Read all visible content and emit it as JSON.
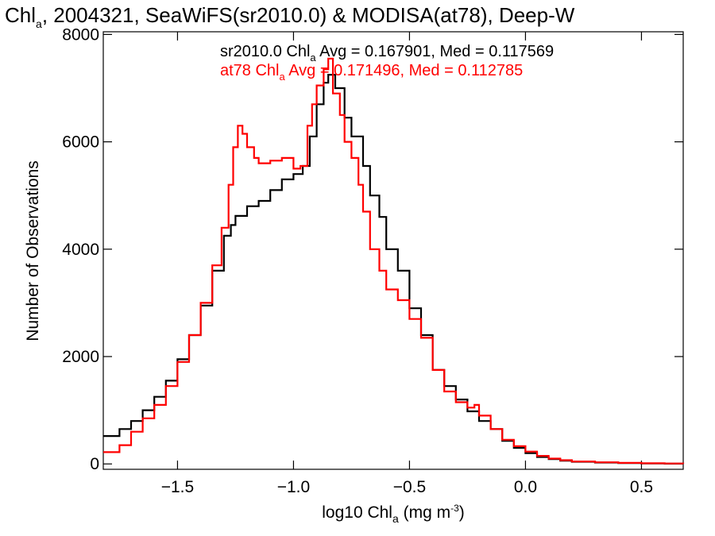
{
  "chart_data": {
    "type": "line",
    "title": {
      "prefix": "Chl",
      "sub": "a",
      "rest": ", 2004321, SeaWiFS(sr2010.0) & MODISA(at78), Deep-W"
    },
    "xlabel": {
      "prefix": "log10 Chl",
      "sub": "a",
      "unit_open": " (mg m",
      "unit_sup": "-3",
      "unit_close": ")"
    },
    "ylabel": "Number of Observations",
    "xlim": [
      -1.82,
      0.68
    ],
    "ylim": [
      -100,
      8050
    ],
    "x_ticks": [
      -1.5,
      -1.0,
      -0.5,
      0.0,
      0.5
    ],
    "x_tick_labels": [
      "−1.5",
      "−1.0",
      "−0.5",
      "0.0",
      "0.5"
    ],
    "y_ticks": [
      0,
      2000,
      4000,
      6000,
      8000
    ],
    "y_tick_labels": [
      "0",
      "2000",
      "4000",
      "6000",
      "8000"
    ],
    "annotations": [
      {
        "color": "#000000",
        "pre": "sr2010.0 Chl",
        "sub": "a",
        "post": " Avg = 0.167901, Med = 0.117569"
      },
      {
        "color": "#ff0000",
        "pre": "at78 Chl",
        "sub": "a",
        "post": " Avg = 0.171496, Med = 0.112785"
      }
    ],
    "series": [
      {
        "color": "#000000",
        "step": "histogram",
        "points": [
          [
            -1.82,
            520
          ],
          [
            -1.75,
            650
          ],
          [
            -1.7,
            800
          ],
          [
            -1.65,
            1000
          ],
          [
            -1.6,
            1250
          ],
          [
            -1.55,
            1550
          ],
          [
            -1.5,
            1950
          ],
          [
            -1.45,
            2400
          ],
          [
            -1.4,
            2950
          ],
          [
            -1.35,
            3600
          ],
          [
            -1.3,
            4250
          ],
          [
            -1.27,
            4450
          ],
          [
            -1.25,
            4620
          ],
          [
            -1.2,
            4800
          ],
          [
            -1.15,
            4900
          ],
          [
            -1.1,
            5100
          ],
          [
            -1.05,
            5300
          ],
          [
            -1.0,
            5400
          ],
          [
            -0.96,
            5550
          ],
          [
            -0.93,
            6100
          ],
          [
            -0.9,
            6700
          ],
          [
            -0.87,
            7100
          ],
          [
            -0.85,
            7250
          ],
          [
            -0.82,
            7000
          ],
          [
            -0.78,
            6450
          ],
          [
            -0.75,
            6100
          ],
          [
            -0.7,
            5550
          ],
          [
            -0.67,
            5000
          ],
          [
            -0.63,
            4600
          ],
          [
            -0.6,
            4000
          ],
          [
            -0.55,
            3600
          ],
          [
            -0.5,
            2900
          ],
          [
            -0.45,
            2400
          ],
          [
            -0.4,
            1750
          ],
          [
            -0.35,
            1450
          ],
          [
            -0.3,
            1200
          ],
          [
            -0.25,
            980
          ],
          [
            -0.2,
            800
          ],
          [
            -0.15,
            650
          ],
          [
            -0.1,
            430
          ],
          [
            -0.05,
            300
          ],
          [
            0.0,
            200
          ],
          [
            0.05,
            130
          ],
          [
            0.1,
            90
          ],
          [
            0.15,
            60
          ],
          [
            0.2,
            40
          ],
          [
            0.3,
            25
          ],
          [
            0.4,
            15
          ],
          [
            0.5,
            10
          ],
          [
            0.6,
            5
          ],
          [
            0.68,
            5
          ]
        ]
      },
      {
        "color": "#ff0000",
        "step": "histogram",
        "points": [
          [
            -1.82,
            220
          ],
          [
            -1.75,
            350
          ],
          [
            -1.7,
            600
          ],
          [
            -1.65,
            850
          ],
          [
            -1.6,
            1100
          ],
          [
            -1.55,
            1450
          ],
          [
            -1.5,
            1900
          ],
          [
            -1.45,
            2400
          ],
          [
            -1.4,
            3000
          ],
          [
            -1.35,
            3700
          ],
          [
            -1.31,
            4400
          ],
          [
            -1.28,
            5200
          ],
          [
            -1.26,
            5900
          ],
          [
            -1.24,
            6300
          ],
          [
            -1.22,
            6150
          ],
          [
            -1.2,
            5900
          ],
          [
            -1.17,
            5700
          ],
          [
            -1.15,
            5600
          ],
          [
            -1.1,
            5650
          ],
          [
            -1.05,
            5700
          ],
          [
            -1.0,
            5500
          ],
          [
            -0.97,
            5550
          ],
          [
            -0.94,
            6300
          ],
          [
            -0.92,
            6700
          ],
          [
            -0.9,
            7050
          ],
          [
            -0.87,
            7350
          ],
          [
            -0.85,
            7550
          ],
          [
            -0.83,
            6900
          ],
          [
            -0.8,
            6500
          ],
          [
            -0.78,
            6000
          ],
          [
            -0.75,
            5700
          ],
          [
            -0.72,
            5200
          ],
          [
            -0.7,
            4700
          ],
          [
            -0.67,
            4000
          ],
          [
            -0.63,
            3600
          ],
          [
            -0.6,
            3250
          ],
          [
            -0.55,
            3050
          ],
          [
            -0.5,
            2700
          ],
          [
            -0.45,
            2350
          ],
          [
            -0.4,
            1750
          ],
          [
            -0.35,
            1350
          ],
          [
            -0.3,
            1150
          ],
          [
            -0.25,
            1050
          ],
          [
            -0.22,
            1100
          ],
          [
            -0.2,
            900
          ],
          [
            -0.15,
            650
          ],
          [
            -0.1,
            450
          ],
          [
            -0.05,
            330
          ],
          [
            0.0,
            230
          ],
          [
            0.05,
            150
          ],
          [
            0.1,
            100
          ],
          [
            0.15,
            70
          ],
          [
            0.2,
            45
          ],
          [
            0.3,
            30
          ],
          [
            0.4,
            20
          ],
          [
            0.5,
            12
          ],
          [
            0.6,
            8
          ],
          [
            0.68,
            5
          ]
        ]
      }
    ],
    "grid": false,
    "legend": "none"
  }
}
